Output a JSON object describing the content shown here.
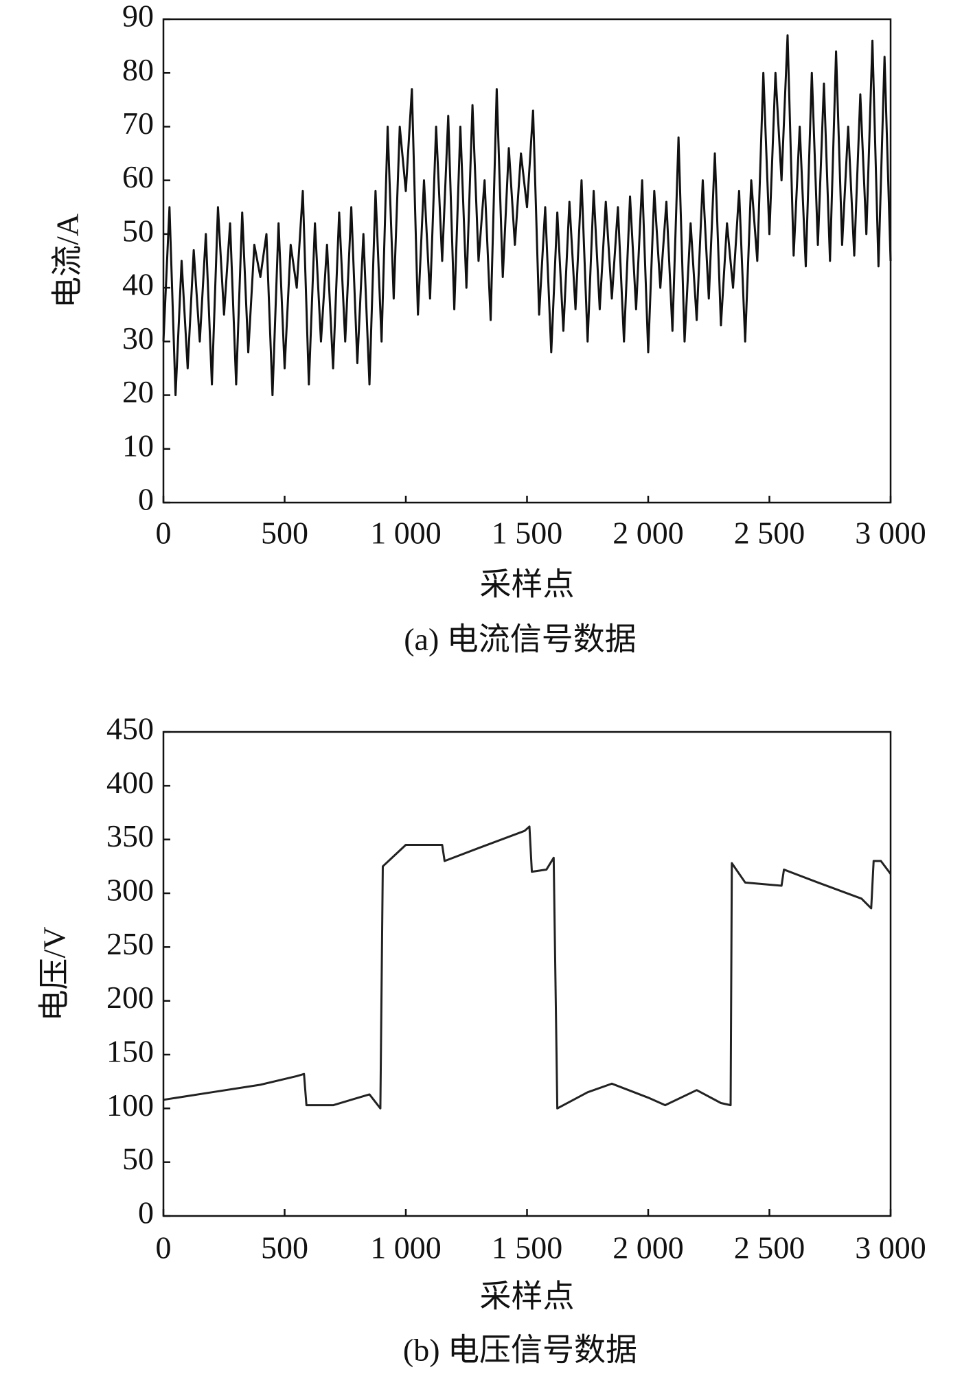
{
  "chart_data": [
    {
      "type": "line",
      "title": "(a) 电流信号数据",
      "xlabel": "采样点",
      "ylabel": "电流/A",
      "color": "#111111",
      "x": [
        0,
        25,
        50,
        75,
        100,
        125,
        150,
        175,
        200,
        225,
        250,
        275,
        300,
        325,
        350,
        375,
        400,
        425,
        450,
        475,
        500,
        525,
        550,
        575,
        600,
        625,
        650,
        675,
        700,
        725,
        750,
        775,
        800,
        825,
        850,
        875,
        900,
        925,
        950,
        975,
        1000,
        1025,
        1050,
        1075,
        1100,
        1125,
        1150,
        1175,
        1200,
        1225,
        1250,
        1275,
        1300,
        1325,
        1350,
        1375,
        1400,
        1425,
        1450,
        1475,
        1500,
        1525,
        1550,
        1575,
        1600,
        1625,
        1650,
        1675,
        1700,
        1725,
        1750,
        1775,
        1800,
        1825,
        1850,
        1875,
        1900,
        1925,
        1950,
        1975,
        2000,
        2025,
        2050,
        2075,
        2100,
        2125,
        2150,
        2175,
        2200,
        2225,
        2250,
        2275,
        2300,
        2325,
        2350,
        2375,
        2400,
        2425,
        2450,
        2475,
        2500,
        2525,
        2550,
        2575,
        2600,
        2625,
        2650,
        2675,
        2700,
        2725,
        2750,
        2775,
        2800,
        2825,
        2850,
        2875,
        2900,
        2925,
        2950,
        2975,
        3000
      ],
      "values": [
        30,
        55,
        20,
        45,
        25,
        47,
        30,
        50,
        22,
        55,
        35,
        52,
        22,
        54,
        28,
        48,
        42,
        50,
        20,
        52,
        25,
        48,
        40,
        58,
        22,
        52,
        30,
        48,
        25,
        54,
        30,
        55,
        26,
        50,
        22,
        58,
        30,
        70,
        38,
        70,
        58,
        77,
        35,
        60,
        38,
        70,
        45,
        72,
        36,
        70,
        40,
        74,
        45,
        60,
        34,
        77,
        42,
        66,
        48,
        65,
        55,
        73,
        35,
        55,
        28,
        54,
        32,
        56,
        36,
        60,
        30,
        58,
        36,
        56,
        38,
        55,
        30,
        57,
        36,
        60,
        28,
        58,
        40,
        56,
        32,
        68,
        30,
        52,
        34,
        60,
        38,
        65,
        33,
        52,
        40,
        58,
        30,
        60,
        45,
        80,
        50,
        80,
        60,
        87,
        46,
        70,
        44,
        80,
        48,
        78,
        45,
        84,
        48,
        70,
        46,
        76,
        50,
        86,
        44,
        83,
        45
      ],
      "xlim": [
        0,
        3000
      ],
      "ylim": [
        0,
        90
      ],
      "xticks": [
        0,
        500,
        {
          "value": 1000,
          "label": "1 000"
        },
        {
          "value": 1500,
          "label": "1 500"
        },
        {
          "value": 2000,
          "label": "2 000"
        },
        {
          "value": 2500,
          "label": "2 500"
        },
        {
          "value": 3000,
          "label": "3 000"
        }
      ],
      "yticks": [
        0,
        10,
        20,
        30,
        40,
        50,
        60,
        70,
        80,
        90
      ]
    },
    {
      "type": "line",
      "title": "(b) 电压信号数据",
      "xlabel": "采样点",
      "ylabel": "电压/V",
      "color": "#222222",
      "x": [
        0,
        200,
        400,
        550,
        580,
        590,
        700,
        850,
        895,
        905,
        1000,
        1150,
        1160,
        1300,
        1490,
        1510,
        1520,
        1580,
        1610,
        1625,
        1750,
        1850,
        2000,
        2070,
        2200,
        2300,
        2340,
        2345,
        2400,
        2550,
        2560,
        2700,
        2880,
        2920,
        2930,
        2960,
        3000
      ],
      "values": [
        108,
        115,
        122,
        130,
        132,
        103,
        103,
        113,
        100,
        325,
        345,
        345,
        330,
        342,
        358,
        362,
        320,
        322,
        333,
        100,
        115,
        123,
        110,
        103,
        117,
        105,
        103,
        328,
        310,
        307,
        322,
        310,
        295,
        286,
        330,
        330,
        318
      ],
      "xlim": [
        0,
        3000
      ],
      "ylim": [
        0,
        450
      ],
      "xticks": [
        0,
        500,
        {
          "value": 1000,
          "label": "1 000"
        },
        {
          "value": 1500,
          "label": "1 500"
        },
        {
          "value": 2000,
          "label": "2 000"
        },
        {
          "value": 2500,
          "label": "2 500"
        },
        {
          "value": 3000,
          "label": "3 000"
        }
      ],
      "yticks": [
        0,
        50,
        100,
        150,
        200,
        250,
        300,
        350,
        400,
        450
      ]
    }
  ]
}
